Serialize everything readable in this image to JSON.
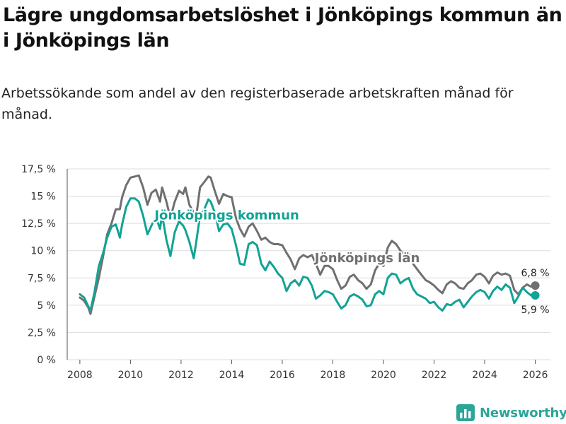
{
  "title": "Lägre ungdomsarbetslöshet i Jönköpings kommun än i Jönköpings län",
  "subtitle": "Arbetssökande som andel av den registerbaserade arbetskraften månad för månad.",
  "brand": {
    "name": "Newsworthy",
    "icon": "bar-chart-logo-icon"
  },
  "colors": {
    "kommun": "#12a394",
    "lan": "#707073",
    "grid": "#dcdcdc",
    "axis": "#333333"
  },
  "chart_data": {
    "type": "line",
    "title": "Lägre ungdomsarbetslöshet i Jönköpings kommun än i Jönköpings län",
    "xlabel": "",
    "ylabel": "",
    "ylim": [
      0,
      17.5
    ],
    "xlim": [
      2007.5,
      2026.6
    ],
    "y_ticks": [
      0,
      2.5,
      5,
      7.5,
      10,
      12.5,
      15,
      17.5
    ],
    "y_tick_labels": [
      "0 %",
      "2,5 %",
      "5 %",
      "7,5 %",
      "10 %",
      "12,5 %",
      "15 %",
      "17,5 %"
    ],
    "x_ticks": [
      2008,
      2010,
      2012,
      2014,
      2016,
      2018,
      2020,
      2022,
      2024,
      2026
    ],
    "x_tick_labels": [
      "2008",
      "2010",
      "2012",
      "2014",
      "2016",
      "2018",
      "2020",
      "2022",
      "2024",
      "2026"
    ],
    "grid": true,
    "series": [
      {
        "name": "Jönköpings län",
        "label": "Jönköpings län",
        "color": "#707073",
        "end_label": "6,8 %",
        "points": [
          [
            2008.0,
            5.7
          ],
          [
            2008.17,
            5.4
          ],
          [
            2008.33,
            4.8
          ],
          [
            2008.42,
            4.2
          ],
          [
            2008.58,
            5.8
          ],
          [
            2008.75,
            7.5
          ],
          [
            2008.92,
            9.5
          ],
          [
            2009.08,
            11.5
          ],
          [
            2009.25,
            12.5
          ],
          [
            2009.42,
            13.8
          ],
          [
            2009.58,
            13.8
          ],
          [
            2009.67,
            14.9
          ],
          [
            2009.83,
            16.0
          ],
          [
            2010.0,
            16.7
          ],
          [
            2010.17,
            16.8
          ],
          [
            2010.33,
            16.9
          ],
          [
            2010.5,
            15.8
          ],
          [
            2010.67,
            14.2
          ],
          [
            2010.83,
            15.3
          ],
          [
            2011.0,
            15.6
          ],
          [
            2011.17,
            14.5
          ],
          [
            2011.25,
            15.8
          ],
          [
            2011.42,
            14.5
          ],
          [
            2011.58,
            13.0
          ],
          [
            2011.75,
            14.5
          ],
          [
            2011.92,
            15.5
          ],
          [
            2012.08,
            15.2
          ],
          [
            2012.17,
            15.8
          ],
          [
            2012.33,
            14.2
          ],
          [
            2012.5,
            13.5
          ],
          [
            2012.58,
            12.8
          ],
          [
            2012.75,
            15.8
          ],
          [
            2012.92,
            16.3
          ],
          [
            2013.08,
            16.8
          ],
          [
            2013.17,
            16.7
          ],
          [
            2013.33,
            15.5
          ],
          [
            2013.5,
            14.3
          ],
          [
            2013.67,
            15.2
          ],
          [
            2013.83,
            15.0
          ],
          [
            2014.0,
            14.9
          ],
          [
            2014.17,
            13.0
          ],
          [
            2014.33,
            12.0
          ],
          [
            2014.5,
            11.3
          ],
          [
            2014.67,
            12.2
          ],
          [
            2014.83,
            12.5
          ],
          [
            2015.0,
            11.8
          ],
          [
            2015.17,
            11.0
          ],
          [
            2015.33,
            11.2
          ],
          [
            2015.5,
            10.8
          ],
          [
            2015.67,
            10.6
          ],
          [
            2015.83,
            10.6
          ],
          [
            2016.0,
            10.5
          ],
          [
            2016.17,
            9.8
          ],
          [
            2016.33,
            9.2
          ],
          [
            2016.5,
            8.3
          ],
          [
            2016.67,
            9.3
          ],
          [
            2016.83,
            9.6
          ],
          [
            2017.0,
            9.4
          ],
          [
            2017.17,
            9.6
          ],
          [
            2017.33,
            8.8
          ],
          [
            2017.5,
            7.8
          ],
          [
            2017.67,
            8.6
          ],
          [
            2017.83,
            8.6
          ],
          [
            2018.0,
            8.3
          ],
          [
            2018.17,
            7.3
          ],
          [
            2018.33,
            6.5
          ],
          [
            2018.5,
            6.8
          ],
          [
            2018.67,
            7.6
          ],
          [
            2018.83,
            7.8
          ],
          [
            2019.0,
            7.3
          ],
          [
            2019.17,
            7.0
          ],
          [
            2019.33,
            6.5
          ],
          [
            2019.5,
            6.9
          ],
          [
            2019.67,
            8.2
          ],
          [
            2019.83,
            8.8
          ],
          [
            2020.0,
            8.6
          ],
          [
            2020.17,
            10.3
          ],
          [
            2020.33,
            10.9
          ],
          [
            2020.5,
            10.6
          ],
          [
            2020.67,
            10.0
          ],
          [
            2020.83,
            9.6
          ],
          [
            2021.0,
            9.8
          ],
          [
            2021.17,
            8.8
          ],
          [
            2021.33,
            8.3
          ],
          [
            2021.5,
            7.8
          ],
          [
            2021.67,
            7.3
          ],
          [
            2021.83,
            7.1
          ],
          [
            2022.0,
            6.8
          ],
          [
            2022.17,
            6.4
          ],
          [
            2022.33,
            6.1
          ],
          [
            2022.5,
            6.9
          ],
          [
            2022.67,
            7.2
          ],
          [
            2022.83,
            7.0
          ],
          [
            2023.0,
            6.6
          ],
          [
            2023.17,
            6.5
          ],
          [
            2023.33,
            7.0
          ],
          [
            2023.5,
            7.3
          ],
          [
            2023.67,
            7.8
          ],
          [
            2023.83,
            7.9
          ],
          [
            2024.0,
            7.6
          ],
          [
            2024.17,
            7.0
          ],
          [
            2024.33,
            7.7
          ],
          [
            2024.5,
            8.0
          ],
          [
            2024.67,
            7.8
          ],
          [
            2024.83,
            7.9
          ],
          [
            2025.0,
            7.7
          ],
          [
            2025.17,
            6.4
          ],
          [
            2025.33,
            6.0
          ],
          [
            2025.5,
            6.6
          ],
          [
            2025.67,
            6.9
          ],
          [
            2025.83,
            6.7
          ],
          [
            2026.0,
            6.8
          ]
        ]
      },
      {
        "name": "Jönköpings kommun",
        "label": "Jönköpings kommun",
        "color": "#12a394",
        "end_label": "5,9 %",
        "points": [
          [
            2008.0,
            6.0
          ],
          [
            2008.17,
            5.7
          ],
          [
            2008.33,
            4.9
          ],
          [
            2008.42,
            4.5
          ],
          [
            2008.58,
            6.2
          ],
          [
            2008.75,
            8.6
          ],
          [
            2008.92,
            9.8
          ],
          [
            2009.08,
            11.2
          ],
          [
            2009.25,
            12.2
          ],
          [
            2009.42,
            12.4
          ],
          [
            2009.58,
            11.2
          ],
          [
            2009.67,
            12.4
          ],
          [
            2009.83,
            14.0
          ],
          [
            2010.0,
            14.8
          ],
          [
            2010.17,
            14.8
          ],
          [
            2010.33,
            14.5
          ],
          [
            2010.5,
            13.2
          ],
          [
            2010.67,
            11.5
          ],
          [
            2010.83,
            12.3
          ],
          [
            2011.0,
            13.1
          ],
          [
            2011.17,
            12.0
          ],
          [
            2011.25,
            13.3
          ],
          [
            2011.42,
            11.0
          ],
          [
            2011.58,
            9.5
          ],
          [
            2011.75,
            11.7
          ],
          [
            2011.92,
            12.7
          ],
          [
            2012.08,
            12.3
          ],
          [
            2012.17,
            11.9
          ],
          [
            2012.33,
            10.8
          ],
          [
            2012.5,
            9.3
          ],
          [
            2012.58,
            10.5
          ],
          [
            2012.75,
            13.2
          ],
          [
            2012.92,
            13.8
          ],
          [
            2013.08,
            14.7
          ],
          [
            2013.17,
            14.5
          ],
          [
            2013.33,
            13.5
          ],
          [
            2013.5,
            11.8
          ],
          [
            2013.67,
            12.4
          ],
          [
            2013.83,
            12.5
          ],
          [
            2014.0,
            12.0
          ],
          [
            2014.17,
            10.5
          ],
          [
            2014.33,
            8.8
          ],
          [
            2014.5,
            8.7
          ],
          [
            2014.67,
            10.6
          ],
          [
            2014.83,
            10.8
          ],
          [
            2015.0,
            10.5
          ],
          [
            2015.17,
            8.8
          ],
          [
            2015.33,
            8.2
          ],
          [
            2015.5,
            9.0
          ],
          [
            2015.67,
            8.5
          ],
          [
            2015.83,
            7.9
          ],
          [
            2016.0,
            7.5
          ],
          [
            2016.17,
            6.3
          ],
          [
            2016.33,
            7.0
          ],
          [
            2016.5,
            7.3
          ],
          [
            2016.67,
            6.8
          ],
          [
            2016.83,
            7.6
          ],
          [
            2017.0,
            7.5
          ],
          [
            2017.17,
            6.8
          ],
          [
            2017.33,
            5.6
          ],
          [
            2017.5,
            5.9
          ],
          [
            2017.67,
            6.3
          ],
          [
            2017.83,
            6.2
          ],
          [
            2018.0,
            6.0
          ],
          [
            2018.17,
            5.3
          ],
          [
            2018.33,
            4.7
          ],
          [
            2018.5,
            5.0
          ],
          [
            2018.67,
            5.8
          ],
          [
            2018.83,
            6.0
          ],
          [
            2019.0,
            5.8
          ],
          [
            2019.17,
            5.5
          ],
          [
            2019.33,
            4.9
          ],
          [
            2019.5,
            5.0
          ],
          [
            2019.67,
            6.0
          ],
          [
            2019.83,
            6.3
          ],
          [
            2020.0,
            6.0
          ],
          [
            2020.17,
            7.5
          ],
          [
            2020.33,
            7.9
          ],
          [
            2020.5,
            7.8
          ],
          [
            2020.67,
            7.0
          ],
          [
            2020.83,
            7.3
          ],
          [
            2021.0,
            7.5
          ],
          [
            2021.17,
            6.5
          ],
          [
            2021.33,
            6.0
          ],
          [
            2021.5,
            5.8
          ],
          [
            2021.67,
            5.6
          ],
          [
            2021.83,
            5.2
          ],
          [
            2022.0,
            5.3
          ],
          [
            2022.17,
            4.8
          ],
          [
            2022.33,
            4.5
          ],
          [
            2022.5,
            5.1
          ],
          [
            2022.67,
            5.0
          ],
          [
            2022.83,
            5.3
          ],
          [
            2023.0,
            5.5
          ],
          [
            2023.17,
            4.8
          ],
          [
            2023.33,
            5.3
          ],
          [
            2023.5,
            5.8
          ],
          [
            2023.67,
            6.2
          ],
          [
            2023.83,
            6.4
          ],
          [
            2024.0,
            6.2
          ],
          [
            2024.17,
            5.6
          ],
          [
            2024.33,
            6.3
          ],
          [
            2024.5,
            6.7
          ],
          [
            2024.67,
            6.4
          ],
          [
            2024.83,
            6.9
          ],
          [
            2025.0,
            6.6
          ],
          [
            2025.17,
            5.2
          ],
          [
            2025.33,
            5.8
          ],
          [
            2025.5,
            6.6
          ],
          [
            2025.67,
            6.2
          ],
          [
            2025.83,
            5.9
          ],
          [
            2026.0,
            5.9
          ]
        ]
      }
    ]
  }
}
